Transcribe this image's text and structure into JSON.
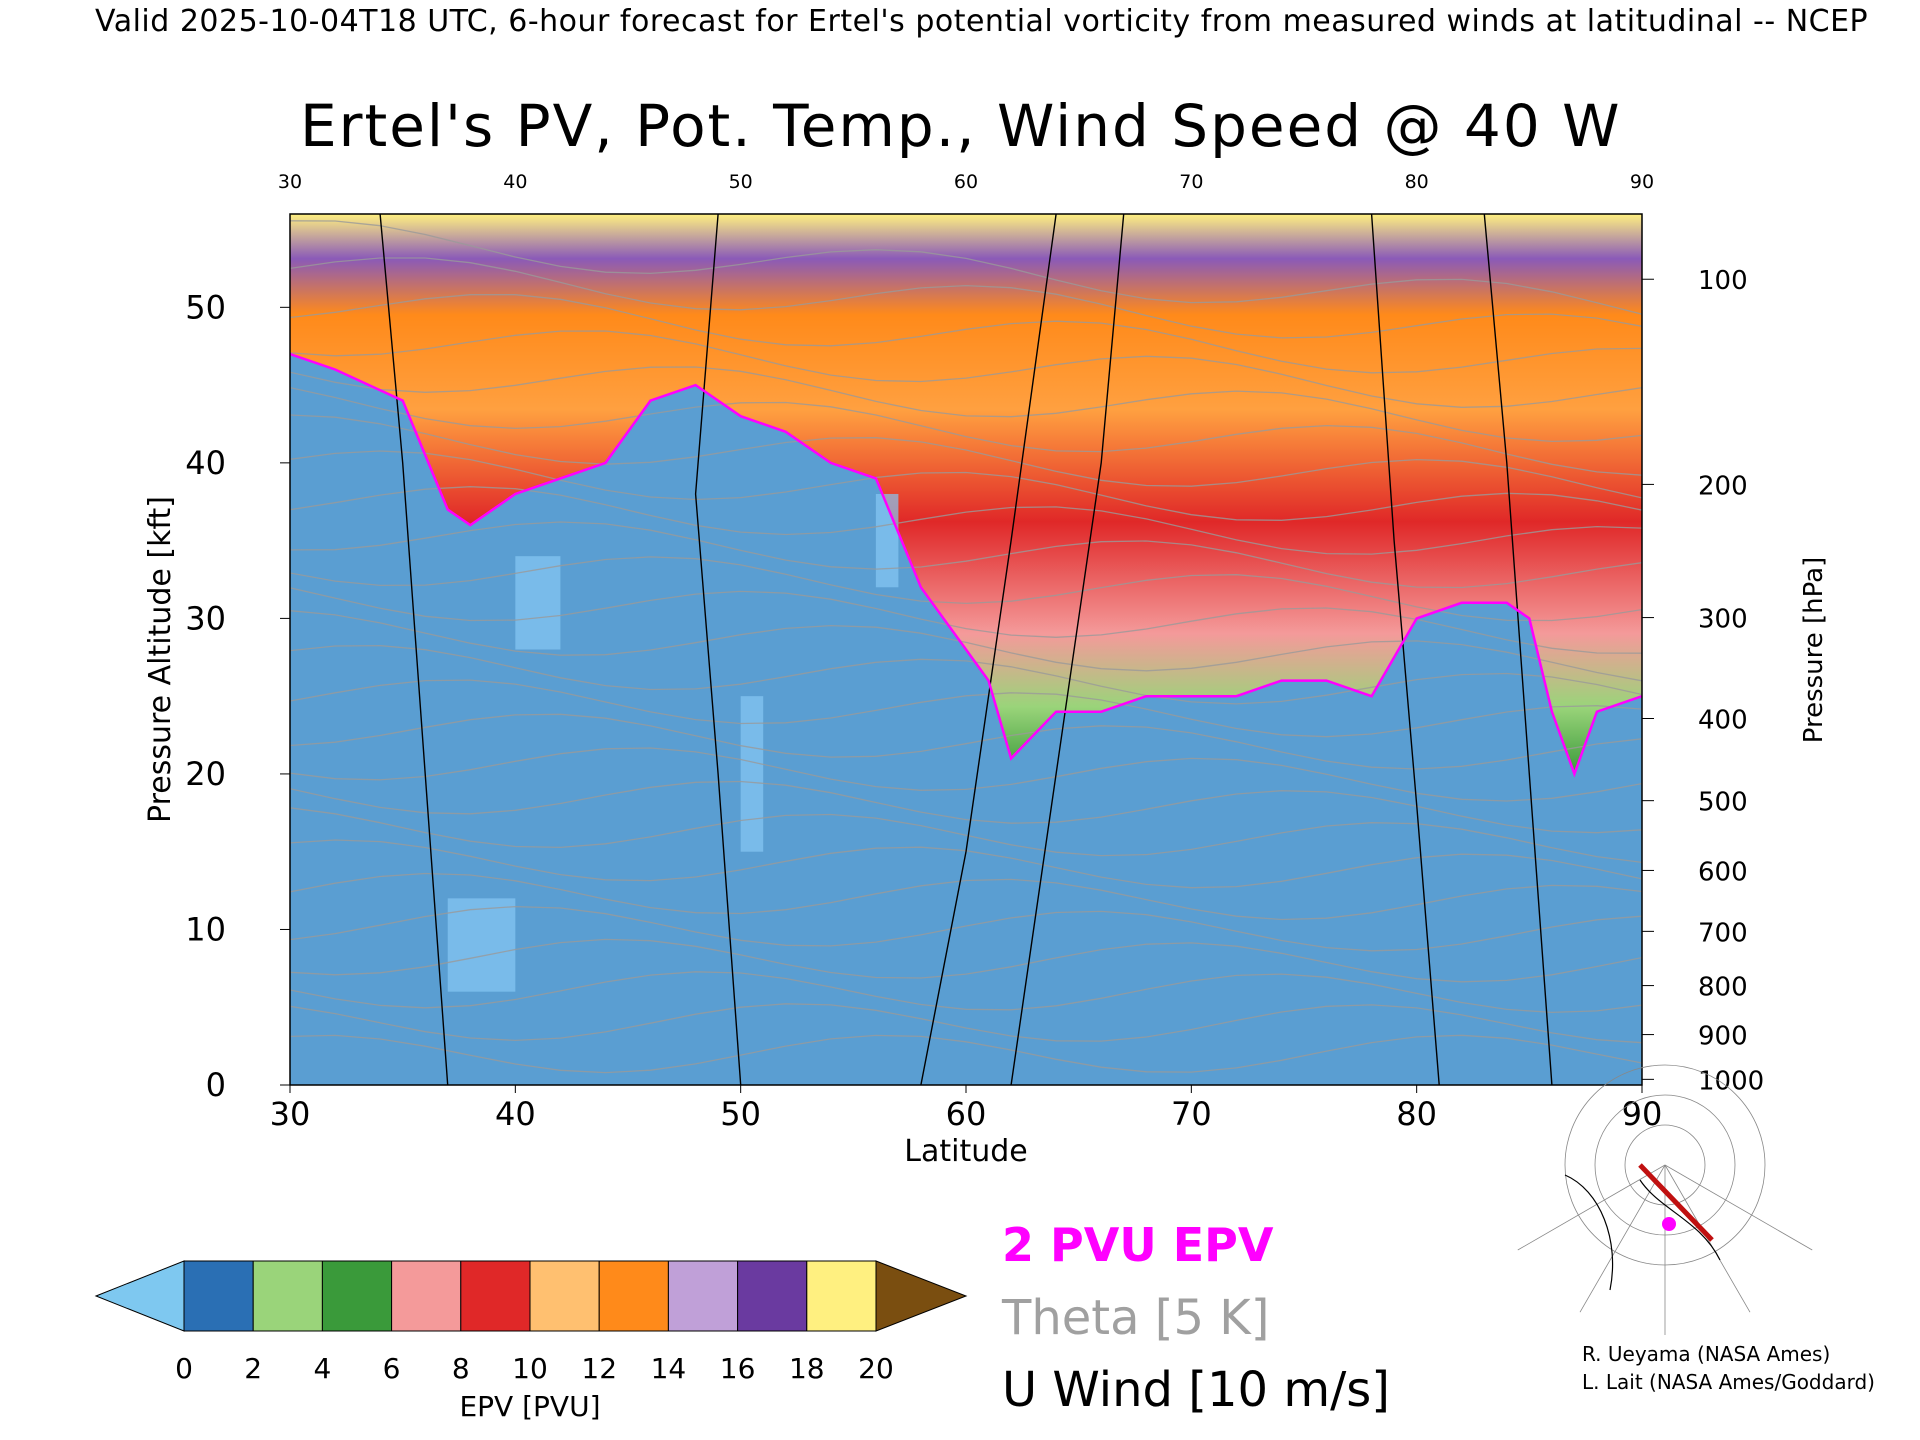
{
  "header": "Valid 2025-10-04T18 UTC, 6-hour forecast for Ertel's potential vorticity from measured winds at latitudinal -- NCEP",
  "title": "Ertel's PV, Pot. Temp., Wind Speed @ 40 W",
  "chart_data": {
    "type": "heatmap",
    "title": "Ertel's PV, Pot. Temp., Wind Speed @ 40 W",
    "xlabel": "Latitude",
    "ylabel": "Pressure Altitude [kft]",
    "y2label": "Pressure [hPa]",
    "xlim": [
      30,
      90
    ],
    "ylim": [
      0,
      56
    ],
    "x_ticks": [
      30,
      40,
      50,
      60,
      70,
      80,
      90
    ],
    "y_ticks": [
      0,
      10,
      20,
      30,
      40,
      50
    ],
    "pressure_ticks": [
      100,
      200,
      300,
      400,
      500,
      600,
      700,
      800,
      900,
      1000
    ],
    "pv_2pvu_altitude_kft": {
      "x": [
        30,
        32,
        35,
        37,
        38,
        40,
        42,
        44,
        46,
        48,
        50,
        52,
        54,
        56,
        58,
        60,
        61,
        62,
        64,
        66,
        68,
        70,
        72,
        74,
        76,
        78,
        80,
        82,
        84,
        85,
        86,
        87,
        88,
        90
      ],
      "y": [
        47,
        46,
        44,
        37,
        36,
        38,
        39,
        40,
        44,
        45,
        43,
        42,
        40,
        39,
        32,
        28,
        26,
        21,
        24,
        24,
        25,
        25,
        25,
        26,
        26,
        25,
        30,
        31,
        31,
        30,
        24,
        20,
        24,
        25
      ]
    },
    "colorbar": {
      "label": "EPV [PVU]",
      "ticks": [
        0,
        2,
        4,
        6,
        8,
        10,
        12,
        14,
        16,
        18,
        20
      ],
      "colors": [
        "#7ec8f0",
        "#2a6fb4",
        "#9ad47a",
        "#3a9a3a",
        "#f49a9a",
        "#e02828",
        "#ffc070",
        "#ff8a1a",
        "#c0a0d8",
        "#6a3aa0",
        "#fff080",
        "#7a4e10"
      ]
    }
  },
  "legend": {
    "pv_label": "2 PVU EPV",
    "theta_label": "Theta [5 K]",
    "wind_label": "U Wind [10 m/s]"
  },
  "credits": {
    "line1": "R. Ueyama (NASA Ames)",
    "line2": "L. Lait (NASA Ames/Goddard)"
  }
}
